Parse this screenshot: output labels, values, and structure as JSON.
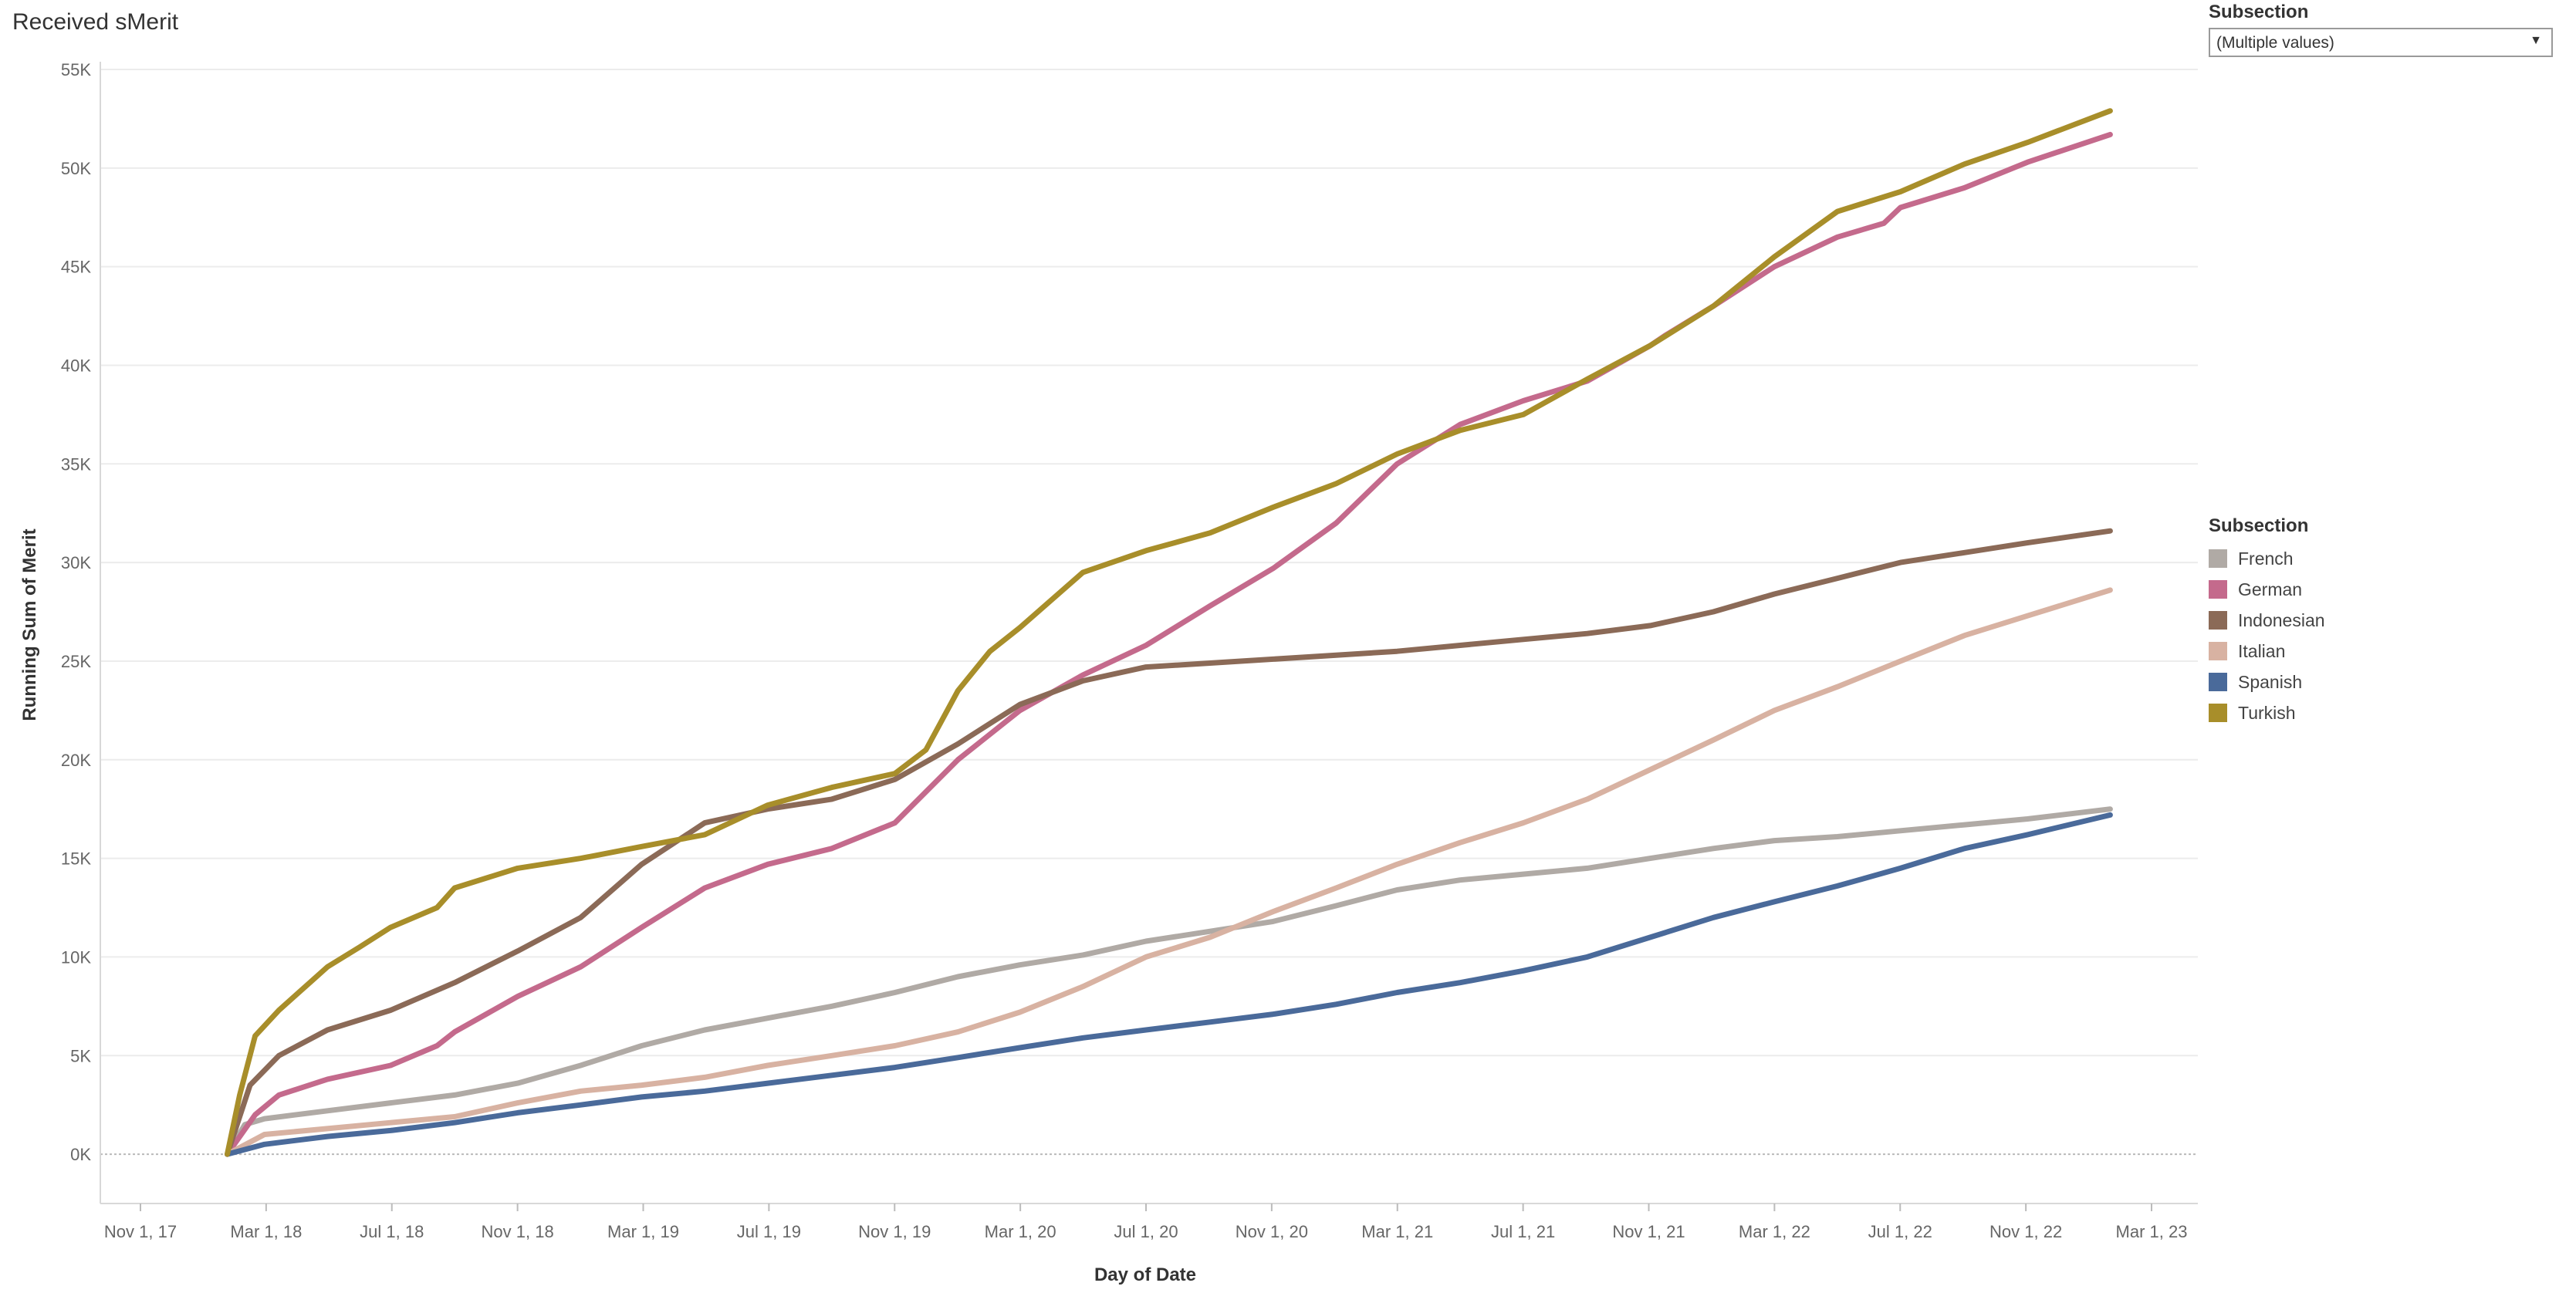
{
  "title": "Received sMerit",
  "filter": {
    "title": "Subsection",
    "selected": "(Multiple values)"
  },
  "legend": {
    "title": "Subsection",
    "items": [
      {
        "label": "French",
        "color": "#B0AAA5"
      },
      {
        "label": "German",
        "color": "#C46A8C"
      },
      {
        "label": "Indonesian",
        "color": "#8B6A57"
      },
      {
        "label": "Italian",
        "color": "#D8B2A2"
      },
      {
        "label": "Spanish",
        "color": "#4A6A9A"
      },
      {
        "label": "Turkish",
        "color": "#A88E2A"
      }
    ]
  },
  "chart_data": {
    "type": "line",
    "title": "Received sMerit",
    "xlabel": "Day of Date",
    "ylabel": "Running Sum of Merit",
    "x_ticks": [
      "Nov 1, 17",
      "Mar 1, 18",
      "Jul 1, 18",
      "Nov 1, 18",
      "Mar 1, 19",
      "Jul 1, 19",
      "Nov 1, 19",
      "Mar 1, 20",
      "Jul 1, 20",
      "Nov 1, 20",
      "Mar 1, 21",
      "Jul 1, 21",
      "Nov 1, 21",
      "Mar 1, 22",
      "Jul 1, 22",
      "Nov 1, 22",
      "Mar 1, 23"
    ],
    "y_ticks": [
      "0K",
      "5K",
      "10K",
      "15K",
      "20K",
      "25K",
      "30K",
      "35K",
      "40K",
      "45K",
      "50K",
      "55K"
    ],
    "ylim": [
      -2500,
      55000
    ],
    "grid": true,
    "legend_position": "right",
    "series": [
      {
        "name": "French",
        "color": "#B0AAA5",
        "x": [
          "2018-01-24",
          "2018-02-10",
          "2018-03-01",
          "2018-05-01",
          "2018-07-01",
          "2018-09-01",
          "2018-11-01",
          "2019-01-01",
          "2019-03-01",
          "2019-05-01",
          "2019-07-01",
          "2019-09-01",
          "2019-11-01",
          "2020-01-01",
          "2020-03-01",
          "2020-05-01",
          "2020-07-01",
          "2020-09-01",
          "2020-11-01",
          "2021-01-01",
          "2021-03-01",
          "2021-05-01",
          "2021-07-01",
          "2021-09-01",
          "2021-11-01",
          "2022-01-01",
          "2022-03-01",
          "2022-05-01",
          "2022-07-01",
          "2022-09-01",
          "2022-11-01",
          "2023-01-20"
        ],
        "y": [
          0,
          1500,
          1800,
          2200,
          2600,
          3000,
          3600,
          4500,
          5500,
          6300,
          6900,
          7500,
          8200,
          9000,
          9600,
          10100,
          10800,
          11300,
          11800,
          12600,
          13400,
          13900,
          14200,
          14500,
          15000,
          15500,
          15900,
          16100,
          16400,
          16700,
          17000,
          17500
        ]
      },
      {
        "name": "German",
        "color": "#C46A8C",
        "x": [
          "2018-01-24",
          "2018-02-20",
          "2018-03-15",
          "2018-05-01",
          "2018-07-01",
          "2018-08-15",
          "2018-09-01",
          "2018-11-01",
          "2019-01-01",
          "2019-03-01",
          "2019-05-01",
          "2019-07-01",
          "2019-09-01",
          "2019-11-01",
          "2020-01-01",
          "2020-03-01",
          "2020-05-01",
          "2020-07-01",
          "2020-09-01",
          "2020-11-01",
          "2021-01-01",
          "2021-03-01",
          "2021-05-01",
          "2021-07-01",
          "2021-09-01",
          "2021-11-01",
          "2021-11-15",
          "2022-01-01",
          "2022-03-01",
          "2022-05-01",
          "2022-06-15",
          "2022-07-01",
          "2022-09-01",
          "2022-11-01",
          "2023-01-20"
        ],
        "y": [
          0,
          2000,
          3000,
          3800,
          4500,
          5500,
          6200,
          8000,
          9500,
          11500,
          13500,
          14700,
          15500,
          16800,
          20000,
          22500,
          24300,
          25800,
          27800,
          29700,
          32000,
          35000,
          37000,
          38200,
          39200,
          41000,
          41500,
          43000,
          45000,
          46500,
          47200,
          48000,
          49000,
          50300,
          51700
        ]
      },
      {
        "name": "Indonesian",
        "color": "#8B6A57",
        "x": [
          "2018-01-24",
          "2018-02-15",
          "2018-03-15",
          "2018-05-01",
          "2018-07-01",
          "2018-09-01",
          "2018-11-01",
          "2019-01-01",
          "2019-03-01",
          "2019-05-01",
          "2019-07-01",
          "2019-09-01",
          "2019-11-01",
          "2020-01-01",
          "2020-03-01",
          "2020-05-01",
          "2020-07-01",
          "2020-09-01",
          "2020-11-01",
          "2021-01-01",
          "2021-03-01",
          "2021-05-01",
          "2021-07-01",
          "2021-09-01",
          "2021-11-01",
          "2022-01-01",
          "2022-03-01",
          "2022-05-01",
          "2022-07-01",
          "2022-09-01",
          "2022-11-01",
          "2023-01-20"
        ],
        "y": [
          0,
          3500,
          5000,
          6300,
          7300,
          8700,
          10300,
          12000,
          14700,
          16800,
          17500,
          18000,
          19000,
          20800,
          22800,
          24000,
          24700,
          24900,
          25100,
          25300,
          25500,
          25800,
          26100,
          26400,
          26800,
          27500,
          28400,
          29200,
          30000,
          30500,
          31000,
          31600
        ]
      },
      {
        "name": "Italian",
        "color": "#D8B2A2",
        "x": [
          "2018-01-24",
          "2018-03-01",
          "2018-05-01",
          "2018-07-01",
          "2018-09-01",
          "2018-11-01",
          "2019-01-01",
          "2019-03-01",
          "2019-05-01",
          "2019-07-01",
          "2019-09-01",
          "2019-11-01",
          "2020-01-01",
          "2020-03-01",
          "2020-05-01",
          "2020-07-01",
          "2020-09-01",
          "2020-11-01",
          "2021-01-01",
          "2021-03-01",
          "2021-05-01",
          "2021-07-01",
          "2021-09-01",
          "2021-11-01",
          "2022-01-01",
          "2022-03-01",
          "2022-05-01",
          "2022-07-01",
          "2022-09-01",
          "2022-11-01",
          "2023-01-20"
        ],
        "y": [
          0,
          1000,
          1300,
          1600,
          1900,
          2600,
          3200,
          3500,
          3900,
          4500,
          5000,
          5500,
          6200,
          7200,
          8500,
          10000,
          11000,
          12300,
          13500,
          14700,
          15800,
          16800,
          18000,
          19500,
          21000,
          22500,
          23700,
          25000,
          26300,
          27300,
          28600
        ]
      },
      {
        "name": "Spanish",
        "color": "#4A6A9A",
        "x": [
          "2018-01-24",
          "2018-03-01",
          "2018-05-01",
          "2018-07-01",
          "2018-09-01",
          "2018-11-01",
          "2019-01-01",
          "2019-03-01",
          "2019-05-01",
          "2019-07-01",
          "2019-09-01",
          "2019-11-01",
          "2020-01-01",
          "2020-03-01",
          "2020-05-01",
          "2020-07-01",
          "2020-09-01",
          "2020-11-01",
          "2021-01-01",
          "2021-03-01",
          "2021-05-01",
          "2021-07-01",
          "2021-09-01",
          "2021-11-01",
          "2022-01-01",
          "2022-03-01",
          "2022-05-01",
          "2022-07-01",
          "2022-09-01",
          "2022-11-01",
          "2023-01-20"
        ],
        "y": [
          0,
          500,
          900,
          1200,
          1600,
          2100,
          2500,
          2900,
          3200,
          3600,
          4000,
          4400,
          4900,
          5400,
          5900,
          6300,
          6700,
          7100,
          7600,
          8200,
          8700,
          9300,
          10000,
          11000,
          12000,
          12800,
          13600,
          14500,
          15500,
          16200,
          17200
        ]
      },
      {
        "name": "Turkish",
        "color": "#A88E2A",
        "x": [
          "2018-01-24",
          "2018-02-05",
          "2018-02-20",
          "2018-03-15",
          "2018-05-01",
          "2018-06-01",
          "2018-07-01",
          "2018-08-15",
          "2018-09-01",
          "2018-11-01",
          "2019-01-01",
          "2019-03-01",
          "2019-05-01",
          "2019-07-01",
          "2019-09-01",
          "2019-11-01",
          "2019-12-01",
          "2020-01-01",
          "2020-02-01",
          "2020-03-01",
          "2020-05-01",
          "2020-07-01",
          "2020-09-01",
          "2020-11-01",
          "2021-01-01",
          "2021-03-01",
          "2021-05-01",
          "2021-07-01",
          "2021-09-01",
          "2021-11-01",
          "2022-01-01",
          "2022-03-01",
          "2022-05-01",
          "2022-07-01",
          "2022-09-01",
          "2022-11-01",
          "2023-01-20"
        ],
        "y": [
          0,
          3000,
          6000,
          7300,
          9500,
          10500,
          11500,
          12500,
          13500,
          14500,
          15000,
          15600,
          16200,
          17700,
          18600,
          19300,
          20500,
          23500,
          25500,
          26700,
          29500,
          30600,
          31500,
          32800,
          34000,
          35500,
          36700,
          37500,
          39300,
          41000,
          43000,
          45500,
          47800,
          48800,
          50200,
          51300,
          52900
        ]
      }
    ]
  }
}
